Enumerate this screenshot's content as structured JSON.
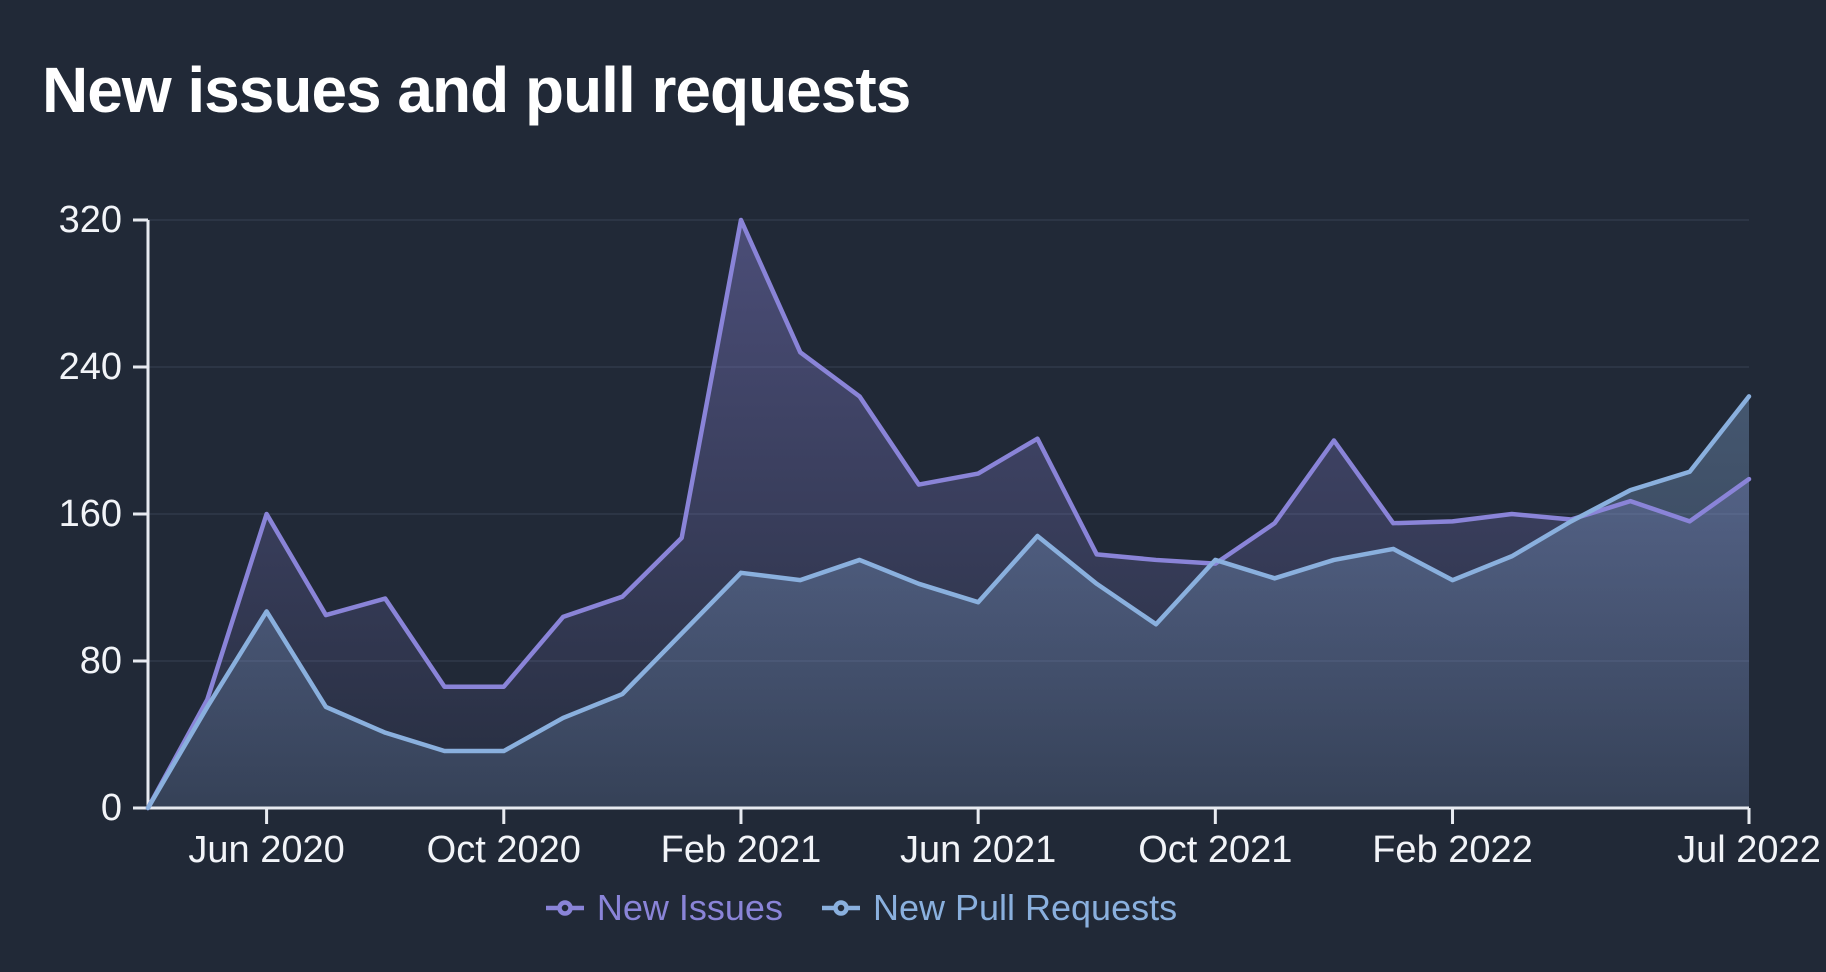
{
  "title": "New issues and pull requests",
  "colors": {
    "background": "#212937",
    "grid": "#2c3545",
    "axis": "#e7eaf0",
    "tick_label": "#f2f4f8",
    "title_text": "#ffffff"
  },
  "chart_data": {
    "type": "area",
    "title": "New issues and pull requests",
    "x": [
      "Apr 2020",
      "May 2020",
      "Jun 2020",
      "Jul 2020",
      "Aug 2020",
      "Sep 2020",
      "Oct 2020",
      "Nov 2020",
      "Dec 2020",
      "Jan 2021",
      "Feb 2021",
      "Mar 2021",
      "Apr 2021",
      "May 2021",
      "Jun 2021",
      "Jul 2021",
      "Aug 2021",
      "Sep 2021",
      "Oct 2021",
      "Nov 2021",
      "Dec 2021",
      "Jan 2022",
      "Feb 2022",
      "Mar 2022",
      "Apr 2022",
      "May 2022",
      "Jun 2022",
      "Jul 2022"
    ],
    "series": [
      {
        "name": "New Issues",
        "color": "#8a84d8",
        "values": [
          0,
          59,
          160,
          105,
          114,
          66,
          66,
          104,
          115,
          147,
          320,
          248,
          224,
          176,
          182,
          201,
          138,
          135,
          133,
          155,
          200,
          155,
          156,
          160,
          157,
          167,
          156,
          179
        ]
      },
      {
        "name": "New Pull Requests",
        "color": "#8ab0de",
        "values": [
          0,
          55,
          107,
          55,
          41,
          31,
          31,
          49,
          62,
          95,
          128,
          124,
          135,
          122,
          112,
          148,
          122,
          100,
          135,
          125,
          135,
          141,
          124,
          137,
          156,
          173,
          183,
          224
        ]
      }
    ],
    "ylim": [
      0,
      320
    ],
    "y_ticks": [
      0,
      80,
      160,
      240,
      320
    ],
    "x_tick_labels": [
      "Jun 2020",
      "Oct 2020",
      "Feb 2021",
      "Jun 2021",
      "Oct 2021",
      "Feb 2022",
      "Jul 2022"
    ],
    "x_tick_indices": [
      2,
      6,
      10,
      14,
      18,
      22,
      27
    ],
    "grid": "horizontal",
    "legend_position": "bottom",
    "area_fill": true
  }
}
